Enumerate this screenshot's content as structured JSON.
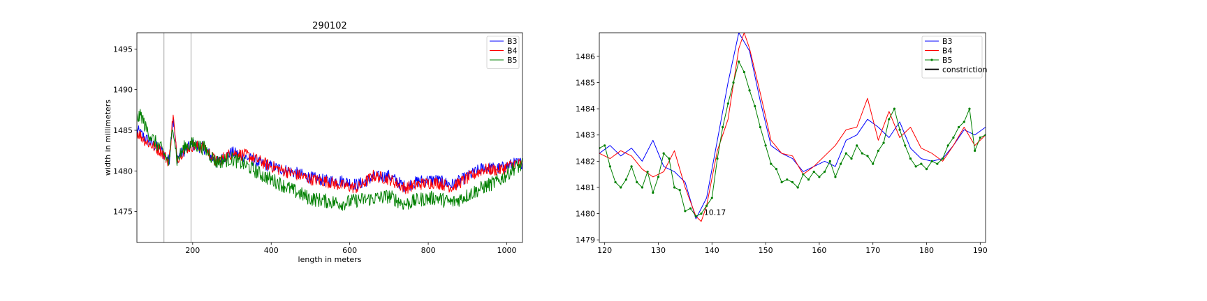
{
  "chart_data": [
    {
      "type": "line",
      "title": "290102",
      "xlabel": "length in meters",
      "ylabel": "width in millimeters",
      "xlim": [
        58,
        1040
      ],
      "ylim": [
        1471.2,
        1497.0
      ],
      "xticks": [
        200,
        400,
        600,
        800,
        1000
      ],
      "yticks": [
        1475,
        1480,
        1485,
        1490,
        1495
      ],
      "vlines": [
        127,
        196
      ],
      "legend": {
        "location": "top-right",
        "entries": [
          "B3",
          "B4",
          "B5"
        ]
      },
      "series": [
        {
          "name": "B3",
          "color": "#0000ff",
          "marker": "none",
          "x": [
            58,
            80,
            100,
            120,
            140,
            150,
            160,
            180,
            200,
            230,
            260,
            300,
            340,
            380,
            420,
            460,
            500,
            540,
            580,
            620,
            660,
            700,
            740,
            780,
            820,
            860,
            900,
            940,
            980,
            1020,
            1040
          ],
          "y": [
            1485.0,
            1484.0,
            1483.2,
            1482.5,
            1481.2,
            1486.8,
            1481.6,
            1482.6,
            1483.2,
            1482.8,
            1481.0,
            1482.3,
            1481.6,
            1480.8,
            1480.3,
            1479.8,
            1479.2,
            1478.8,
            1478.8,
            1478.3,
            1479.2,
            1479.4,
            1478.1,
            1478.8,
            1478.9,
            1478.3,
            1479.3,
            1480.4,
            1480.3,
            1480.9,
            1481.0
          ]
        },
        {
          "name": "B4",
          "color": "#ff0000",
          "marker": "none",
          "x": [
            58,
            80,
            100,
            120,
            140,
            150,
            160,
            180,
            200,
            230,
            260,
            300,
            340,
            380,
            420,
            460,
            500,
            540,
            580,
            620,
            660,
            700,
            740,
            780,
            820,
            860,
            900,
            940,
            980,
            1020,
            1040
          ],
          "y": [
            1484.8,
            1483.7,
            1483.0,
            1482.4,
            1481.1,
            1487.0,
            1481.5,
            1482.7,
            1483.1,
            1482.9,
            1481.1,
            1482.2,
            1481.9,
            1481.0,
            1480.2,
            1479.6,
            1479.0,
            1478.7,
            1478.2,
            1477.9,
            1479.4,
            1479.0,
            1477.9,
            1478.4,
            1478.6,
            1478.0,
            1479.1,
            1480.2,
            1480.1,
            1480.9,
            1480.8
          ]
        },
        {
          "name": "B5",
          "color": "#008000",
          "marker": "none",
          "x": [
            58,
            70,
            80,
            100,
            120,
            140,
            150,
            160,
            180,
            200,
            230,
            260,
            300,
            340,
            380,
            420,
            460,
            500,
            540,
            580,
            620,
            660,
            700,
            740,
            780,
            820,
            860,
            900,
            940,
            980,
            1020,
            1040
          ],
          "y": [
            1486.5,
            1486.8,
            1485.3,
            1483.8,
            1482.7,
            1481.0,
            1485.8,
            1481.3,
            1483.0,
            1483.3,
            1482.8,
            1481.1,
            1481.5,
            1480.6,
            1479.4,
            1478.5,
            1477.5,
            1476.6,
            1476.3,
            1476.0,
            1476.4,
            1476.6,
            1476.9,
            1475.9,
            1476.5,
            1476.7,
            1476.1,
            1477.0,
            1478.0,
            1478.8,
            1480.4,
            1480.7
          ]
        }
      ]
    },
    {
      "type": "line",
      "title": "",
      "xlabel": "",
      "ylabel": "",
      "xlim": [
        119,
        191
      ],
      "ylim": [
        1478.9,
        1486.9
      ],
      "xticks": [
        120,
        130,
        140,
        150,
        160,
        170,
        180,
        190
      ],
      "yticks": [
        1479,
        1480,
        1481,
        1482,
        1483,
        1484,
        1485,
        1486
      ],
      "annotations": [
        {
          "text": "10.17",
          "x": 138.5,
          "y": 1480.0
        }
      ],
      "legend": {
        "location": "top-right",
        "entries": [
          "B3",
          "B4",
          "B5",
          "constriction"
        ]
      },
      "series": [
        {
          "name": "B3",
          "color": "#0000ff",
          "marker": "none",
          "x": [
            119,
            121,
            123,
            125,
            127,
            129,
            131,
            133,
            135,
            137,
            139,
            141,
            143,
            145,
            147,
            149,
            151,
            153,
            155,
            157,
            159,
            161,
            163,
            165,
            167,
            169,
            171,
            173,
            175,
            177,
            179,
            181,
            183,
            185,
            187,
            189,
            191
          ],
          "y": [
            1482.3,
            1482.6,
            1482.2,
            1482.5,
            1482.0,
            1482.8,
            1481.8,
            1481.6,
            1481.2,
            1479.8,
            1480.6,
            1482.8,
            1485.0,
            1486.9,
            1486.2,
            1484.3,
            1482.6,
            1482.3,
            1482.1,
            1481.6,
            1481.8,
            1482.0,
            1481.8,
            1482.8,
            1483.0,
            1483.6,
            1483.3,
            1482.9,
            1483.5,
            1482.5,
            1482.1,
            1482.0,
            1482.1,
            1482.6,
            1483.2,
            1483.0,
            1483.3
          ]
        },
        {
          "name": "B4",
          "color": "#ff0000",
          "marker": "none",
          "x": [
            119,
            121,
            123,
            125,
            127,
            129,
            131,
            133,
            135,
            137,
            138,
            139,
            141,
            143,
            145,
            146,
            147,
            149,
            151,
            153,
            155,
            157,
            159,
            161,
            163,
            165,
            167,
            169,
            171,
            173,
            175,
            177,
            179,
            181,
            183,
            185,
            187,
            189,
            191
          ],
          "y": [
            1482.3,
            1482.1,
            1482.4,
            1482.2,
            1481.7,
            1481.4,
            1481.6,
            1482.4,
            1481.0,
            1479.9,
            1479.7,
            1480.3,
            1482.4,
            1483.6,
            1486.3,
            1486.9,
            1486.3,
            1484.6,
            1482.8,
            1482.3,
            1482.2,
            1481.5,
            1481.8,
            1482.2,
            1482.6,
            1483.2,
            1483.3,
            1484.4,
            1482.8,
            1483.9,
            1482.9,
            1483.3,
            1482.5,
            1482.3,
            1482.0,
            1482.6,
            1483.3,
            1482.6,
            1483.0
          ]
        },
        {
          "name": "B5",
          "color": "#008000",
          "marker": "dot",
          "x": [
            119,
            120,
            121,
            122,
            123,
            124,
            125,
            126,
            127,
            128,
            129,
            130,
            131,
            132,
            133,
            134,
            135,
            136,
            137,
            138,
            139,
            140,
            141,
            142,
            143,
            144,
            145,
            146,
            147,
            148,
            149,
            150,
            151,
            152,
            153,
            154,
            155,
            156,
            157,
            158,
            159,
            160,
            161,
            162,
            163,
            164,
            165,
            166,
            167,
            168,
            169,
            170,
            171,
            172,
            173,
            174,
            175,
            176,
            177,
            178,
            179,
            180,
            181,
            182,
            183,
            184,
            185,
            186,
            187,
            188,
            189,
            190,
            191
          ],
          "y": [
            1482.5,
            1482.6,
            1481.8,
            1481.2,
            1481.0,
            1481.3,
            1481.8,
            1481.2,
            1481.0,
            1481.6,
            1480.8,
            1481.4,
            1482.3,
            1482.1,
            1481.0,
            1480.9,
            1480.1,
            1480.2,
            1479.9,
            1480.0,
            1480.3,
            1480.6,
            1482.1,
            1483.3,
            1484.2,
            1485.0,
            1485.8,
            1485.4,
            1484.7,
            1484.1,
            1483.3,
            1482.6,
            1481.9,
            1481.7,
            1481.2,
            1481.3,
            1481.2,
            1481.0,
            1481.5,
            1481.3,
            1481.6,
            1481.4,
            1481.6,
            1482.0,
            1481.4,
            1481.9,
            1482.3,
            1482.1,
            1482.6,
            1482.3,
            1482.2,
            1481.9,
            1482.4,
            1482.7,
            1483.6,
            1484.0,
            1483.2,
            1482.6,
            1482.1,
            1481.8,
            1481.9,
            1481.7,
            1482.0,
            1481.9,
            1482.1,
            1482.6,
            1482.9,
            1483.3,
            1483.5,
            1484.0,
            1482.4,
            1482.9,
            1483.0
          ]
        }
      ]
    }
  ]
}
